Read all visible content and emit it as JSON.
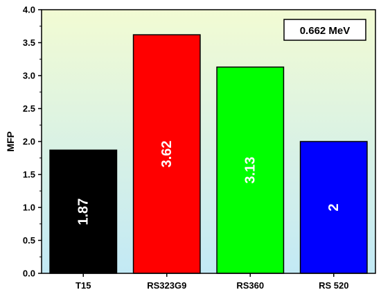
{
  "chart_data": {
    "type": "bar",
    "title": "",
    "xlabel": "",
    "ylabel": "MFP",
    "ylim": [
      0,
      4
    ],
    "yticks": [
      "0.0",
      "0.5",
      "1.0",
      "1.5",
      "2.0",
      "2.5",
      "3.0",
      "3.5",
      "4.0"
    ],
    "categories": [
      "T15",
      "RS323G9",
      "RS360",
      "RS 520"
    ],
    "values": [
      1.87,
      3.62,
      3.13,
      2.0
    ],
    "data_labels": [
      "1.87",
      "3.62",
      "3.13",
      "2"
    ],
    "bar_colors": [
      "#000000",
      "#ff0000",
      "#00ff00",
      "#0000ff"
    ],
    "label_colors": [
      "#ffffff",
      "#ffffff",
      "#ffffff",
      "#ffffff"
    ],
    "annotation": "0.662 MeV",
    "background_gradient": [
      "#f2fbd3",
      "#c2e9f5"
    ],
    "grid": false,
    "legend": "none"
  }
}
